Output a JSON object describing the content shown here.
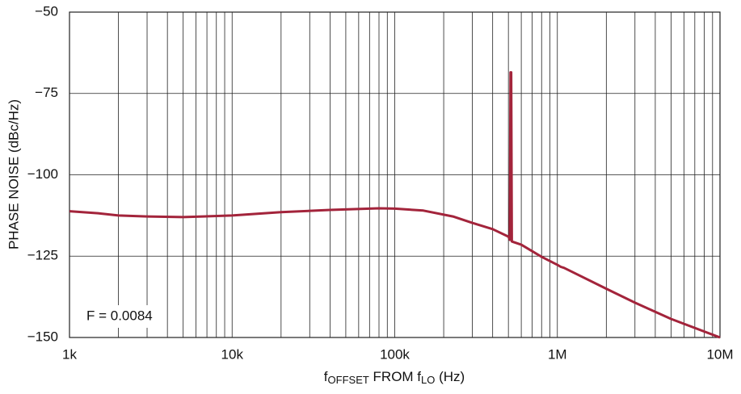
{
  "chart_data": {
    "type": "line",
    "log_x": true,
    "grid": true,
    "y_label": "PHASE NOISE (dBc/Hz)",
    "x_label": [
      "f",
      "OFFSET",
      " FROM f",
      "LO",
      " (Hz)"
    ],
    "annotation": "F = 0.0084",
    "xlim": [
      1000,
      10000000
    ],
    "ylim": [
      -150,
      -50
    ],
    "xticks": [
      {
        "value": 1000,
        "label": "1k"
      },
      {
        "value": 10000,
        "label": "10k"
      },
      {
        "value": 100000,
        "label": "100k"
      },
      {
        "value": 1000000,
        "label": "1M"
      },
      {
        "value": 10000000,
        "label": "10M"
      }
    ],
    "xminorticks": [
      2000,
      3000,
      4000,
      5000,
      6000,
      7000,
      8000,
      9000,
      20000,
      30000,
      40000,
      50000,
      60000,
      70000,
      80000,
      90000,
      200000,
      300000,
      400000,
      500000,
      600000,
      700000,
      800000,
      900000,
      2000000,
      3000000,
      4000000,
      5000000,
      6000000,
      7000000,
      8000000,
      9000000
    ],
    "yticks": [
      {
        "value": -50,
        "label": "−50"
      },
      {
        "value": -75,
        "label": "−75"
      },
      {
        "value": -100,
        "label": "−100"
      },
      {
        "value": -125,
        "label": "−125"
      },
      {
        "value": -150,
        "label": "−150"
      }
    ],
    "x": [
      1000,
      1500,
      2000,
      3000,
      5000,
      10000,
      20000,
      40000,
      80000,
      100000,
      150000,
      228000,
      300000,
      400000,
      500000,
      510000,
      515000,
      520000,
      525000,
      600000,
      800000,
      1000000,
      1050000,
      1100000,
      2000000,
      3000000,
      5000000,
      10000000
    ],
    "series": [
      {
        "color": "#a3243b",
        "values": [
          -111.2,
          -111.8,
          -112.5,
          -112.8,
          -113,
          -112.5,
          -111.5,
          -110.8,
          -110.3,
          -110.4,
          -111,
          -112.8,
          -114.8,
          -116.7,
          -119,
          -120,
          -68.5,
          -68.5,
          -120.5,
          -121.5,
          -125.2,
          -127.7,
          -128.3,
          -128.6,
          -135,
          -139.3,
          -144.3,
          -150
        ]
      }
    ]
  }
}
